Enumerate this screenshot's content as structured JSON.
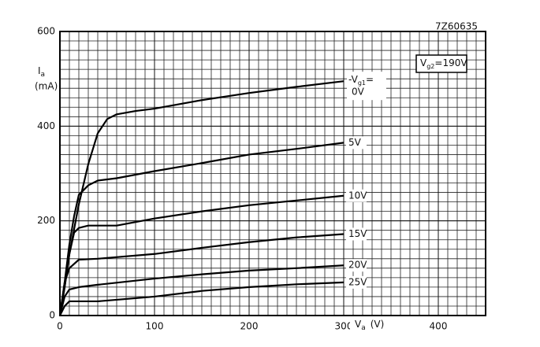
{
  "chart_data": {
    "type": "line",
    "code": "7Z60635",
    "y_label": {
      "symbol": "I",
      "subscript": "a",
      "unit": "(mA)"
    },
    "x_label": {
      "symbol": "V",
      "subscript": "a",
      "unit": "(V)"
    },
    "condition": {
      "symbol": "V",
      "subscript": "g2",
      "text": "=190V"
    },
    "param_label": {
      "symbol": "-V",
      "subscript": "g1",
      "text": "="
    },
    "xlim": [
      0,
      450
    ],
    "ylim": [
      0,
      600
    ],
    "xticks": [
      0,
      100,
      200,
      300,
      400
    ],
    "yticks": [
      0,
      200,
      400,
      600
    ],
    "grid": true,
    "minor_divisions": 10,
    "color": "#000000",
    "series": [
      {
        "name": "0V",
        "x": [
          0,
          5,
          10,
          20,
          30,
          40,
          50,
          60,
          80,
          100,
          150,
          200,
          250,
          300
        ],
        "values": [
          0,
          60,
          130,
          235,
          320,
          385,
          415,
          425,
          432,
          437,
          455,
          470,
          483,
          495
        ]
      },
      {
        "name": "5V",
        "x": [
          0,
          5,
          10,
          15,
          20,
          30,
          40,
          60,
          100,
          150,
          200,
          250,
          300
        ],
        "values": [
          0,
          70,
          150,
          210,
          255,
          275,
          285,
          290,
          305,
          322,
          340,
          352,
          365
        ]
      },
      {
        "name": "10V",
        "x": [
          0,
          5,
          10,
          15,
          20,
          30,
          60,
          100,
          150,
          200,
          250,
          300
        ],
        "values": [
          0,
          60,
          130,
          175,
          185,
          190,
          190,
          205,
          220,
          233,
          243,
          253
        ]
      },
      {
        "name": "15V",
        "x": [
          0,
          5,
          10,
          20,
          40,
          100,
          150,
          200,
          250,
          300
        ],
        "values": [
          0,
          70,
          100,
          118,
          120,
          130,
          143,
          155,
          165,
          172
        ]
      },
      {
        "name": "20V",
        "x": [
          0,
          5,
          10,
          20,
          40,
          100,
          150,
          200,
          250,
          300
        ],
        "values": [
          0,
          40,
          55,
          60,
          65,
          78,
          87,
          95,
          100,
          106
        ]
      },
      {
        "name": "25V",
        "x": [
          0,
          5,
          10,
          20,
          40,
          100,
          150,
          200,
          250,
          300
        ],
        "values": [
          0,
          20,
          30,
          30,
          30,
          40,
          52,
          60,
          66,
          70
        ]
      }
    ]
  }
}
